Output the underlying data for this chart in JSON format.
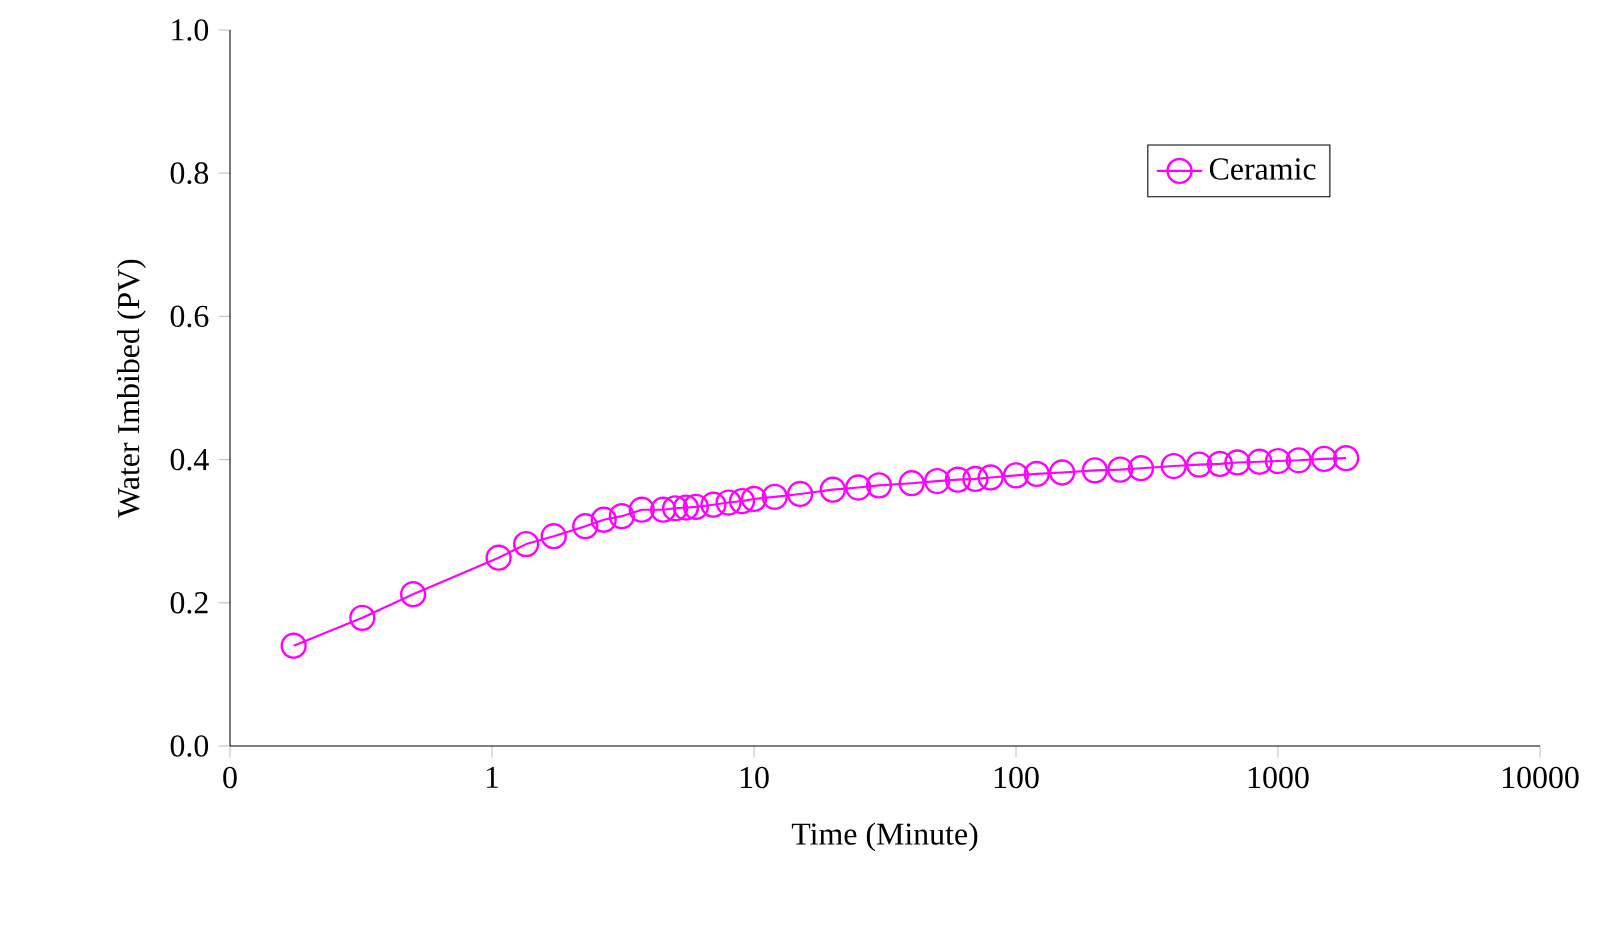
{
  "chart_data": {
    "type": "line",
    "xlabel": "Time (Minute)",
    "ylabel": "Water Imbibed (PV)",
    "log": "x",
    "xlim": [
      0.1,
      10000
    ],
    "ylim": [
      0,
      1.0
    ],
    "xticks": [
      {
        "value": 0.1,
        "label": "0"
      },
      1,
      10,
      100,
      1000,
      10000
    ],
    "yticks": [
      {
        "value": 0,
        "label": "0.0"
      },
      {
        "value": 0.2,
        "label": "0.2"
      },
      {
        "value": 0.4,
        "label": "0.4"
      },
      {
        "value": 0.6,
        "label": "0.6"
      },
      {
        "value": 0.8,
        "label": "0.8"
      },
      {
        "value": 1.0,
        "label": "1.0"
      }
    ],
    "legend": "top right",
    "marker": "circle",
    "line_style": "solid",
    "grid": false,
    "series": [
      {
        "name": "Ceramic",
        "color": "#ff00ff",
        "x": [
          0.175,
          0.32,
          0.5,
          1.06,
          1.35,
          1.72,
          2.27,
          2.67,
          3.13,
          3.73,
          4.5,
          5,
          5.5,
          6,
          7,
          8,
          9,
          10,
          12,
          15,
          20,
          25,
          30,
          40,
          50,
          60,
          70,
          80,
          100,
          120,
          150,
          200,
          250,
          300,
          400,
          500,
          600,
          700,
          850,
          1000,
          1200,
          1500,
          1820
        ],
        "values": [
          0.14,
          0.179,
          0.212,
          0.263,
          0.282,
          0.293,
          0.307,
          0.316,
          0.321,
          0.33,
          0.33,
          0.332,
          0.333,
          0.334,
          0.337,
          0.34,
          0.342,
          0.345,
          0.348,
          0.352,
          0.358,
          0.361,
          0.364,
          0.367,
          0.37,
          0.372,
          0.373,
          0.375,
          0.378,
          0.38,
          0.382,
          0.385,
          0.386,
          0.388,
          0.391,
          0.393,
          0.394,
          0.396,
          0.397,
          0.398,
          0.399,
          0.401,
          0.402
        ]
      }
    ]
  }
}
